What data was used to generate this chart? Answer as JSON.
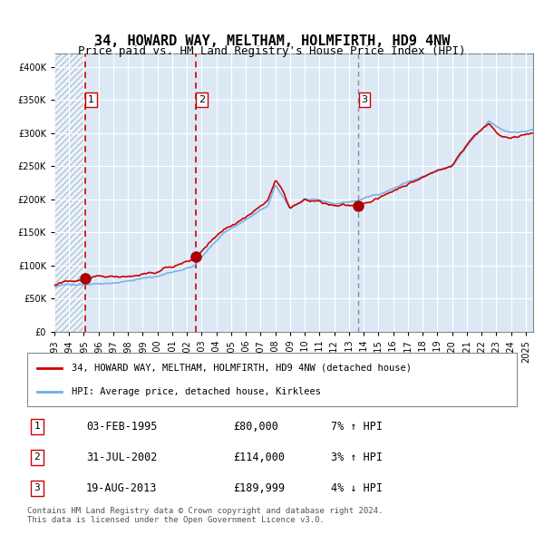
{
  "title_line1": "34, HOWARD WAY, MELTHAM, HOLMFIRTH, HD9 4NW",
  "title_line2": "Price paid vs. HM Land Registry's House Price Index (HPI)",
  "legend_line1": "34, HOWARD WAY, MELTHAM, HOLMFIRTH, HD9 4NW (detached house)",
  "legend_line2": "HPI: Average price, detached house, Kirklees",
  "transactions": [
    {
      "num": 1,
      "date_str": "03-FEB-1995",
      "date_x": 1995.09,
      "price": 80000,
      "hpi_pct": "7% ↑ HPI"
    },
    {
      "num": 2,
      "date_str": "31-JUL-2002",
      "date_x": 2002.58,
      "price": 114000,
      "hpi_pct": "3% ↑ HPI"
    },
    {
      "num": 3,
      "date_str": "19-AUG-2013",
      "date_x": 2013.63,
      "price": 189999,
      "hpi_pct": "4% ↓ HPI"
    }
  ],
  "footnote": "Contains HM Land Registry data © Crown copyright and database right 2024.\nThis data is licensed under the Open Government Licence v3.0.",
  "hpi_color": "#6daee8",
  "price_color": "#cc0000",
  "marker_color": "#aa0000",
  "background_color": "#dce9f5",
  "hatch_color": "#b0c4d8",
  "ylim": [
    0,
    420000
  ],
  "xlim_start": 1993.0,
  "xlim_end": 2025.5,
  "transaction_vline_colors": [
    "#cc0000",
    "#cc0000",
    "#a0a0b0"
  ]
}
